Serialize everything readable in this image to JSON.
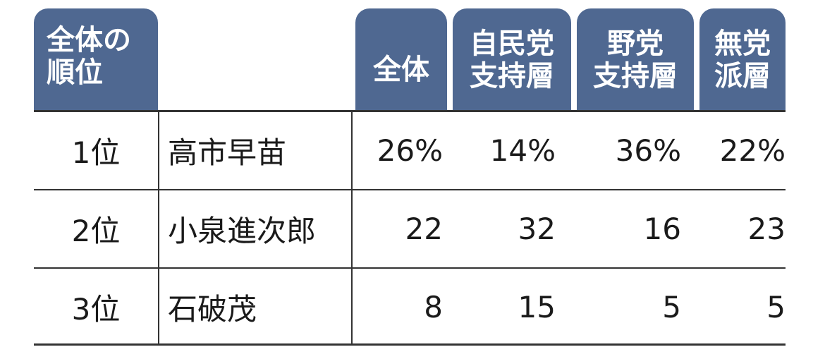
{
  "table": {
    "headers": {
      "rank": [
        "全体の",
        "順位"
      ],
      "all": [
        "全体"
      ],
      "ldp": [
        "自民党",
        "支持層"
      ],
      "opp": [
        "野党",
        "支持層"
      ],
      "ind": [
        "無党",
        "派層"
      ]
    },
    "rows": [
      {
        "rank": "1位",
        "name": "高市早苗",
        "all": "26%",
        "ldp": "14%",
        "opp": "36%",
        "ind": "22%"
      },
      {
        "rank": "2位",
        "name": "小泉進次郎",
        "all": "22",
        "ldp": "32",
        "opp": "16",
        "ind": "23"
      },
      {
        "rank": "3位",
        "name": "石破茂",
        "all": "8",
        "ldp": "15",
        "opp": "5",
        "ind": "5"
      }
    ]
  },
  "colors": {
    "header_bg": "#4f6891",
    "header_text": "#ffffff",
    "rule": "#333333"
  }
}
